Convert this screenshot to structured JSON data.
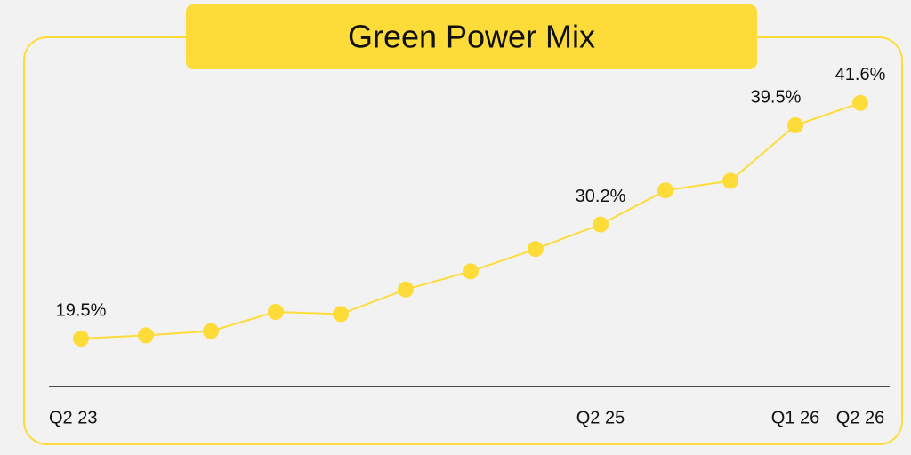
{
  "chart_data": {
    "type": "line",
    "title": "Green Power Mix",
    "categories": [
      "Q2 23",
      null,
      null,
      null,
      null,
      null,
      null,
      null,
      "Q2 25",
      null,
      null,
      "Q1 26",
      "Q2 26"
    ],
    "values": [
      19.5,
      19.8,
      20.2,
      22.0,
      21.8,
      24.1,
      25.8,
      27.9,
      30.2,
      33.4,
      34.3,
      39.5,
      41.6
    ],
    "value_labels": [
      "19.5%",
      null,
      null,
      null,
      null,
      null,
      null,
      null,
      "30.2%",
      null,
      null,
      "39.5%",
      "41.6%"
    ],
    "color": "#fddc3a",
    "ylim": [
      15,
      45
    ]
  }
}
